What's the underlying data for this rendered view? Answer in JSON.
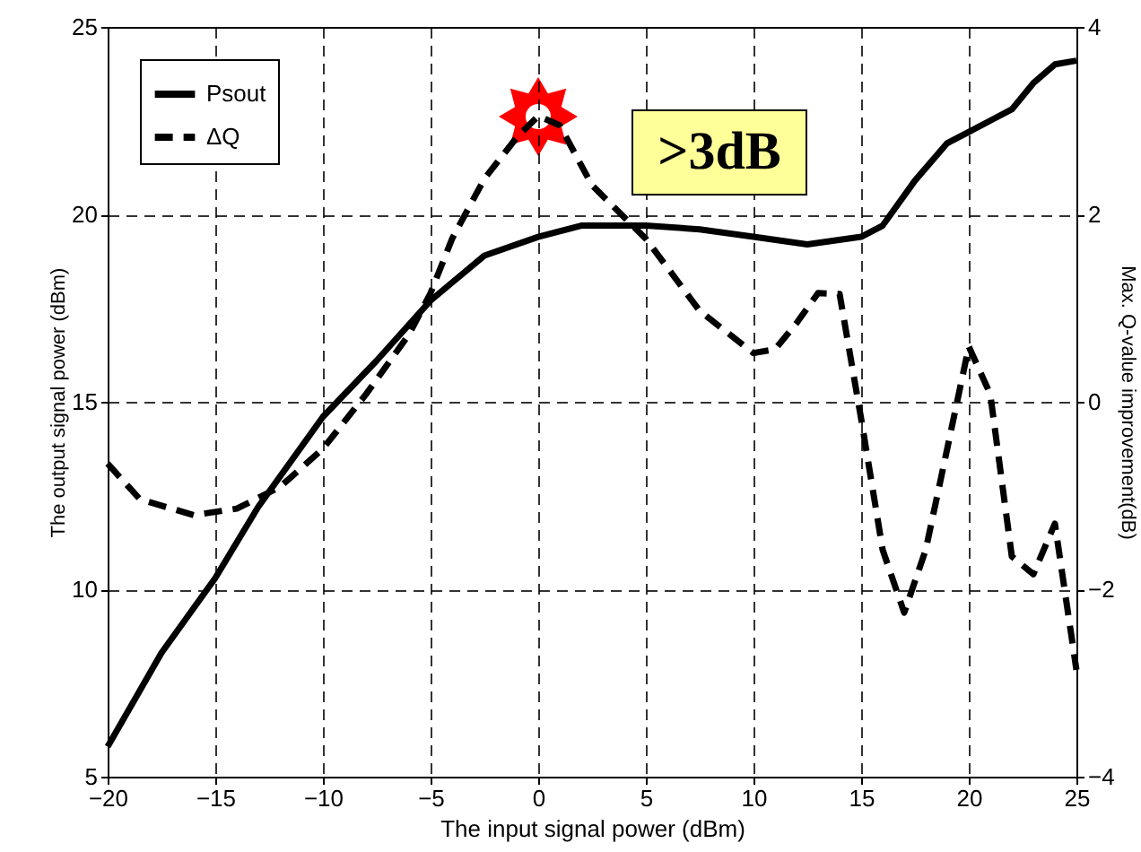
{
  "chart_data": {
    "type": "line",
    "xlabel": "The input signal power (dBm)",
    "ylabel": "The output signal power (dBm)",
    "y2label": "Max. Q-value improvement(dB)",
    "xlim": [
      -20,
      25
    ],
    "xticks": [
      -20,
      -15,
      -10,
      -5,
      0,
      5,
      10,
      15,
      20,
      25
    ],
    "ylim": [
      5,
      25
    ],
    "yticks": [
      5,
      10,
      15,
      20,
      25
    ],
    "y2lim": [
      -4,
      4
    ],
    "y2ticks": [
      -4,
      -2,
      0,
      2,
      4
    ],
    "grid": true,
    "legend": "top left",
    "annotations": [
      ">3dB"
    ],
    "series": [
      {
        "name": "Psout",
        "color": "#000000",
        "line_style": "solid",
        "x": [
          -20,
          -17.5,
          -15,
          -13,
          -10,
          -7.5,
          -5,
          -2.5,
          0,
          2,
          5,
          7.5,
          10,
          12.5,
          15,
          16,
          17.5,
          19,
          20,
          21,
          22,
          23,
          24,
          25
        ],
        "values": [
          5.8,
          8.3,
          10.3,
          12.2,
          14.6,
          16.1,
          17.7,
          18.9,
          19.4,
          19.7,
          19.7,
          19.6,
          19.4,
          19.2,
          19.4,
          19.7,
          20.9,
          21.9,
          22.2,
          22.5,
          22.8,
          23.5,
          24.0,
          24.1
        ]
      },
      {
        "name": "ΔQ",
        "color": "#000000",
        "line_style": "dashed",
        "axis": "y2",
        "x": [
          -20,
          -18.5,
          -16,
          -14,
          -12,
          -10,
          -8,
          -6,
          -5,
          -4,
          -2.5,
          -1,
          0,
          1,
          2.5,
          5,
          7.5,
          10,
          11,
          12,
          13,
          14,
          15,
          16,
          17,
          18,
          19,
          20,
          21,
          22,
          23,
          24,
          25
        ],
        "values": [
          -0.66,
          -1.04,
          -1.21,
          -1.14,
          -0.91,
          -0.5,
          0.08,
          0.72,
          1.16,
          1.74,
          2.38,
          2.82,
          3.05,
          2.95,
          2.31,
          1.74,
          0.97,
          0.52,
          0.56,
          0.84,
          1.16,
          1.15,
          -0.18,
          -1.58,
          -2.25,
          -1.58,
          -0.5,
          0.59,
          0.08,
          -1.65,
          -1.84,
          -1.3,
          -2.86
        ]
      }
    ]
  }
}
